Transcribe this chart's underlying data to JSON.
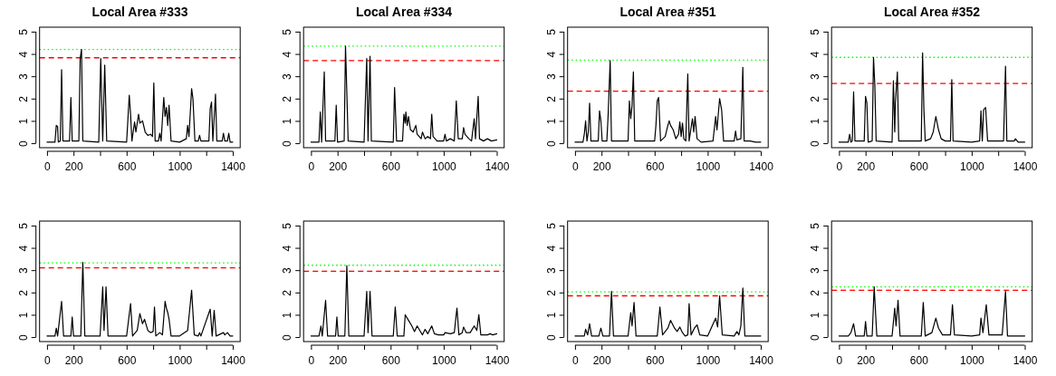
{
  "chart_data": [
    {
      "type": "line",
      "title": "Local Area #333",
      "color": "#000000",
      "line_style": "solid",
      "xlim": [
        -56,
        1456
      ],
      "ylim": [
        -0.2,
        5.2
      ],
      "xticks": [
        0,
        200,
        {
          "value": 400,
          "label": null
        },
        600,
        {
          "value": 800,
          "label": null
        },
        1000,
        {
          "value": 1200,
          "label": null
        },
        1400
      ],
      "yticks": [
        0,
        1,
        2,
        3,
        4,
        5
      ],
      "grid": false,
      "legend": false,
      "x": [
        0,
        60,
        70,
        80,
        85,
        100,
        110,
        120,
        170,
        180,
        190,
        240,
        250,
        260,
        270,
        390,
        405,
        420,
        435,
        450,
        600,
        620,
        630,
        640,
        660,
        670,
        690,
        700,
        720,
        740,
        760,
        780,
        795,
        805,
        815,
        840,
        850,
        860,
        880,
        890,
        900,
        910,
        920,
        935,
        1000,
        1050,
        1060,
        1070,
        1090,
        1100,
        1115,
        1140,
        1150,
        1160,
        1220,
        1230,
        1240,
        1250,
        1270,
        1280,
        1320,
        1330,
        1340,
        1360,
        1370,
        1380,
        1400
      ],
      "values": [
        0.05,
        0.05,
        0.8,
        0.75,
        0.05,
        0.1,
        3.3,
        0.1,
        0.1,
        2.05,
        0.1,
        0.1,
        3.8,
        4.2,
        0.1,
        0.05,
        3.8,
        0.1,
        3.5,
        0.1,
        0.05,
        2.15,
        1.3,
        0.1,
        0.95,
        0.5,
        1.3,
        0.9,
        1.0,
        0.5,
        0.35,
        0.4,
        0.3,
        2.7,
        0.1,
        0.1,
        0.45,
        0.1,
        2.05,
        1.2,
        1.6,
        0.8,
        1.7,
        0.1,
        0.05,
        0.2,
        0.8,
        0.3,
        2.45,
        2.0,
        0.1,
        0.1,
        0.35,
        0.1,
        0.1,
        1.55,
        1.85,
        0.1,
        2.2,
        0.1,
        0.1,
        0.45,
        0.1,
        0.1,
        0.45,
        0.05,
        0.05
      ],
      "ref_lines": [
        {
          "axis": "y",
          "value": 3.83,
          "color": "#ff0000",
          "line_style": "dashed"
        },
        {
          "axis": "y",
          "value": 4.2,
          "color": "#00ff00",
          "line_style": "dotted"
        }
      ]
    },
    {
      "type": "line",
      "title": "Local Area #334",
      "color": "#000000",
      "line_style": "solid",
      "xlim": [
        -56,
        1456
      ],
      "ylim": [
        -0.2,
        5.2
      ],
      "xticks": [
        0,
        200,
        {
          "value": 400,
          "label": null
        },
        600,
        {
          "value": 800,
          "label": null
        },
        1000,
        {
          "value": 1200,
          "label": null
        },
        1400
      ],
      "yticks": [
        0,
        1,
        2,
        3,
        4,
        5
      ],
      "grid": false,
      "legend": false,
      "x": [
        0,
        60,
        70,
        80,
        100,
        110,
        180,
        190,
        200,
        250,
        260,
        270,
        280,
        400,
        420,
        430,
        445,
        455,
        620,
        630,
        645,
        690,
        700,
        710,
        715,
        725,
        735,
        750,
        770,
        790,
        800,
        830,
        840,
        860,
        880,
        900,
        910,
        920,
        950,
        1000,
        1010,
        1020,
        1050,
        1080,
        1095,
        1110,
        1140,
        1150,
        1160,
        1190,
        1210,
        1220,
        1230,
        1240,
        1260,
        1270,
        1300,
        1330,
        1360,
        1400
      ],
      "values": [
        0.05,
        0.05,
        1.4,
        0.05,
        3.2,
        0.1,
        0.1,
        1.7,
        0.05,
        0.1,
        4.35,
        2.3,
        0.1,
        0.05,
        3.8,
        0.1,
        3.9,
        0.1,
        0.05,
        2.5,
        0.1,
        0.1,
        1.3,
        0.9,
        1.4,
        0.8,
        1.2,
        0.6,
        0.5,
        0.8,
        0.4,
        0.2,
        0.5,
        0.2,
        0.3,
        0.2,
        1.3,
        0.3,
        0.1,
        0.1,
        0.4,
        0.1,
        0.2,
        0.1,
        1.9,
        0.2,
        0.2,
        0.7,
        0.4,
        0.2,
        0.1,
        0.6,
        1.1,
        0.2,
        2.1,
        0.2,
        0.1,
        0.2,
        0.1,
        0.15
      ],
      "ref_lines": [
        {
          "axis": "y",
          "value": 3.7,
          "color": "#ff0000",
          "line_style": "dashed"
        },
        {
          "axis": "y",
          "value": 4.35,
          "color": "#00ff00",
          "line_style": "dotted"
        }
      ]
    },
    {
      "type": "line",
      "title": "Local Area #351",
      "color": "#000000",
      "line_style": "solid",
      "xlim": [
        -56,
        1456
      ],
      "ylim": [
        -0.2,
        5.2
      ],
      "xticks": [
        0,
        200,
        {
          "value": 400,
          "label": null
        },
        600,
        {
          "value": 800,
          "label": null
        },
        1000,
        {
          "value": 1200,
          "label": null
        },
        1400
      ],
      "yticks": [
        0,
        1,
        2,
        3,
        4,
        5
      ],
      "grid": false,
      "legend": false,
      "x": [
        0,
        60,
        70,
        80,
        90,
        100,
        110,
        120,
        175,
        185,
        195,
        205,
        240,
        250,
        265,
        275,
        400,
        410,
        420,
        430,
        440,
        450,
        600,
        610,
        620,
        630,
        645,
        680,
        700,
        710,
        720,
        740,
        760,
        780,
        790,
        800,
        810,
        820,
        835,
        850,
        860,
        885,
        895,
        905,
        920,
        950,
        1040,
        1060,
        1070,
        1090,
        1105,
        1120,
        1200,
        1210,
        1220,
        1250,
        1265,
        1275,
        1320,
        1360,
        1400
      ],
      "values": [
        0.05,
        0.05,
        0.4,
        1.0,
        0.1,
        0.5,
        1.8,
        0.1,
        0.1,
        1.45,
        1.0,
        0.1,
        0.1,
        1.3,
        3.7,
        0.1,
        0.1,
        1.9,
        1.1,
        1.7,
        3.2,
        0.1,
        0.1,
        0.8,
        1.9,
        2.05,
        0.1,
        0.3,
        0.8,
        1.0,
        0.8,
        0.6,
        0.2,
        0.4,
        0.95,
        0.3,
        0.9,
        0.2,
        0.1,
        3.1,
        0.1,
        1.1,
        0.5,
        1.2,
        0.2,
        0.05,
        0.1,
        1.2,
        0.6,
        2.0,
        1.5,
        0.1,
        0.1,
        0.55,
        0.15,
        0.2,
        3.4,
        0.1,
        0.1,
        0.05,
        0.05
      ],
      "ref_lines": [
        {
          "axis": "y",
          "value": 2.33,
          "color": "#ff0000",
          "line_style": "dashed"
        },
        {
          "axis": "y",
          "value": 3.72,
          "color": "#00ff00",
          "line_style": "dotted"
        }
      ]
    },
    {
      "type": "line",
      "title": "Local Area #352",
      "color": "#000000",
      "line_style": "solid",
      "xlim": [
        -56,
        1456
      ],
      "ylim": [
        -0.2,
        5.2
      ],
      "xticks": [
        0,
        200,
        {
          "value": 400,
          "label": null
        },
        600,
        {
          "value": 800,
          "label": null
        },
        1000,
        {
          "value": 1200,
          "label": null
        },
        1400
      ],
      "yticks": [
        0,
        1,
        2,
        3,
        4,
        5
      ],
      "grid": false,
      "legend": false,
      "x": [
        0,
        70,
        80,
        90,
        100,
        110,
        120,
        190,
        200,
        210,
        220,
        250,
        260,
        270,
        280,
        400,
        410,
        420,
        425,
        440,
        450,
        620,
        630,
        640,
        650,
        690,
        710,
        730,
        750,
        770,
        800,
        840,
        850,
        860,
        1000,
        1060,
        1070,
        1080,
        1090,
        1105,
        1120,
        1240,
        1255,
        1265,
        1320,
        1330,
        1350,
        1400
      ],
      "values": [
        0.05,
        0.05,
        0.4,
        0.05,
        0.1,
        2.3,
        0.1,
        0.1,
        2.1,
        1.8,
        0.05,
        0.1,
        3.85,
        2.6,
        0.1,
        0.05,
        2.8,
        0.5,
        1.8,
        3.2,
        0.1,
        0.1,
        4.05,
        1.5,
        0.1,
        0.2,
        0.5,
        1.2,
        0.6,
        0.2,
        0.1,
        0.1,
        2.85,
        0.1,
        0.05,
        0.1,
        1.45,
        0.1,
        1.5,
        1.6,
        0.1,
        0.1,
        3.45,
        0.1,
        0.1,
        0.2,
        0.05,
        0.05
      ],
      "ref_lines": [
        {
          "axis": "y",
          "value": 2.68,
          "color": "#ff0000",
          "line_style": "dashed"
        },
        {
          "axis": "y",
          "value": 3.85,
          "color": "#00ff00",
          "line_style": "dotted"
        }
      ]
    },
    {
      "type": "line",
      "color": "#000000",
      "line_style": "solid",
      "xlim": [
        -56,
        1456
      ],
      "ylim": [
        -0.2,
        5.2
      ],
      "xticks": [
        0,
        200,
        {
          "value": 400,
          "label": null
        },
        600,
        {
          "value": 800,
          "label": null
        },
        1000,
        {
          "value": 1200,
          "label": null
        },
        1400
      ],
      "yticks": [
        0,
        1,
        2,
        3,
        4,
        5
      ],
      "grid": false,
      "legend": false,
      "x": [
        0,
        60,
        70,
        80,
        110,
        125,
        180,
        190,
        200,
        255,
        270,
        285,
        400,
        420,
        430,
        445,
        460,
        600,
        630,
        645,
        680,
        700,
        720,
        735,
        760,
        780,
        800,
        810,
        820,
        850,
        870,
        890,
        900,
        910,
        920,
        935,
        1000,
        1060,
        1090,
        1110,
        1140,
        1150,
        1160,
        1230,
        1245,
        1260,
        1275,
        1330,
        1340,
        1360,
        1380,
        1400
      ],
      "values": [
        0.05,
        0.05,
        0.4,
        0.05,
        1.6,
        0.05,
        0.05,
        0.9,
        0.05,
        0.05,
        3.35,
        0.05,
        0.05,
        2.25,
        0.3,
        2.25,
        0.05,
        0.05,
        1.5,
        0.05,
        0.3,
        1.05,
        0.6,
        0.8,
        0.3,
        0.2,
        0.25,
        1.35,
        0.05,
        0.2,
        0.1,
        1.6,
        1.3,
        1.1,
        0.8,
        0.05,
        0.05,
        0.3,
        2.1,
        0.1,
        0.05,
        0.2,
        0.05,
        1.25,
        0.05,
        1.2,
        0.05,
        0.2,
        0.1,
        0.2,
        0.05,
        0.05
      ],
      "ref_lines": [
        {
          "axis": "y",
          "value": 3.1,
          "color": "#ff0000",
          "line_style": "dashed"
        },
        {
          "axis": "y",
          "value": 3.33,
          "color": "#00ff00",
          "line_style": "dotted"
        }
      ]
    },
    {
      "type": "line",
      "color": "#000000",
      "line_style": "solid",
      "xlim": [
        -56,
        1456
      ],
      "ylim": [
        -0.2,
        5.2
      ],
      "xticks": [
        0,
        200,
        {
          "value": 400,
          "label": null
        },
        600,
        {
          "value": 800,
          "label": null
        },
        1000,
        {
          "value": 1200,
          "label": null
        },
        1400
      ],
      "yticks": [
        0,
        1,
        2,
        3,
        4,
        5
      ],
      "grid": false,
      "legend": false,
      "x": [
        0,
        60,
        75,
        85,
        110,
        125,
        185,
        195,
        205,
        255,
        270,
        285,
        400,
        420,
        430,
        445,
        460,
        620,
        635,
        650,
        700,
        710,
        730,
        760,
        780,
        800,
        820,
        840,
        860,
        880,
        910,
        930,
        960,
        1000,
        1010,
        1050,
        1080,
        1100,
        1115,
        1140,
        1150,
        1170,
        1200,
        1230,
        1250,
        1265,
        1280,
        1330,
        1350,
        1370,
        1400
      ],
      "values": [
        0.05,
        0.05,
        0.5,
        0.05,
        1.65,
        0.05,
        0.05,
        0.9,
        0.05,
        0.05,
        3.2,
        0.05,
        0.05,
        2.05,
        0.2,
        2.05,
        0.05,
        0.05,
        1.35,
        0.05,
        0.05,
        1.0,
        0.8,
        0.5,
        0.25,
        0.5,
        0.3,
        0.1,
        0.35,
        0.15,
        0.5,
        0.15,
        0.1,
        0.1,
        0.2,
        0.15,
        0.2,
        1.3,
        0.1,
        0.2,
        0.45,
        0.2,
        0.2,
        0.5,
        0.3,
        1.0,
        0.1,
        0.1,
        0.15,
        0.1,
        0.15
      ],
      "ref_lines": [
        {
          "axis": "y",
          "value": 2.95,
          "color": "#ff0000",
          "line_style": "dashed"
        },
        {
          "axis": "y",
          "value": 3.22,
          "color": "#00ff00",
          "line_style": "dotted"
        }
      ]
    },
    {
      "type": "line",
      "color": "#000000",
      "line_style": "solid",
      "xlim": [
        -56,
        1456
      ],
      "ylim": [
        -0.2,
        5.2
      ],
      "xticks": [
        0,
        200,
        {
          "value": 400,
          "label": null
        },
        600,
        {
          "value": 800,
          "label": null
        },
        1000,
        {
          "value": 1200,
          "label": null
        },
        1400
      ],
      "yticks": [
        0,
        1,
        2,
        3,
        4,
        5
      ],
      "grid": false,
      "legend": false,
      "x": [
        0,
        70,
        80,
        95,
        110,
        125,
        180,
        195,
        210,
        260,
        275,
        290,
        400,
        420,
        430,
        445,
        460,
        620,
        640,
        660,
        700,
        720,
        750,
        770,
        790,
        810,
        830,
        850,
        860,
        875,
        900,
        920,
        940,
        1000,
        1060,
        1075,
        1090,
        1110,
        1200,
        1220,
        1235,
        1250,
        1265,
        1280,
        1350,
        1400
      ],
      "values": [
        0.05,
        0.05,
        0.35,
        0.1,
        0.6,
        0.05,
        0.05,
        0.4,
        0.05,
        0.05,
        2.05,
        0.05,
        0.05,
        1.1,
        0.5,
        1.55,
        0.05,
        0.05,
        1.35,
        0.1,
        0.4,
        0.75,
        0.4,
        0.25,
        0.45,
        0.2,
        0.05,
        0.1,
        1.5,
        0.1,
        0.4,
        0.55,
        0.1,
        0.05,
        0.85,
        0.45,
        1.85,
        0.1,
        0.05,
        0.25,
        0.1,
        0.5,
        2.2,
        0.05,
        0.05,
        0.05
      ],
      "ref_lines": [
        {
          "axis": "y",
          "value": 1.85,
          "color": "#ff0000",
          "line_style": "dashed"
        },
        {
          "axis": "y",
          "value": 2.03,
          "color": "#00ff00",
          "line_style": "dotted"
        }
      ]
    },
    {
      "type": "line",
      "color": "#000000",
      "line_style": "solid",
      "xlim": [
        -56,
        1456
      ],
      "ylim": [
        -0.2,
        5.2
      ],
      "xticks": [
        0,
        200,
        {
          "value": 400,
          "label": null
        },
        600,
        {
          "value": 800,
          "label": null
        },
        1000,
        {
          "value": 1200,
          "label": null
        },
        1400
      ],
      "yticks": [
        0,
        1,
        2,
        3,
        4,
        5
      ],
      "grid": false,
      "legend": false,
      "x": [
        0,
        70,
        90,
        110,
        125,
        190,
        200,
        210,
        250,
        265,
        285,
        400,
        420,
        430,
        445,
        460,
        620,
        635,
        650,
        700,
        730,
        750,
        780,
        840,
        855,
        870,
        1000,
        1060,
        1070,
        1085,
        1110,
        1130,
        1230,
        1255,
        1270,
        1400
      ],
      "values": [
        0.05,
        0.05,
        0.2,
        0.6,
        0.05,
        0.05,
        0.7,
        0.05,
        0.05,
        2.25,
        0.05,
        0.05,
        1.3,
        0.5,
        1.65,
        0.05,
        0.05,
        1.55,
        0.05,
        0.2,
        0.85,
        0.4,
        0.1,
        0.1,
        1.45,
        0.1,
        0.05,
        0.1,
        0.85,
        0.2,
        1.45,
        0.1,
        0.1,
        2.05,
        0.05,
        0.05
      ],
      "ref_lines": [
        {
          "axis": "y",
          "value": 2.1,
          "color": "#ff0000",
          "line_style": "dashed"
        },
        {
          "axis": "y",
          "value": 2.25,
          "color": "#00ff00",
          "line_style": "dotted"
        }
      ]
    }
  ]
}
